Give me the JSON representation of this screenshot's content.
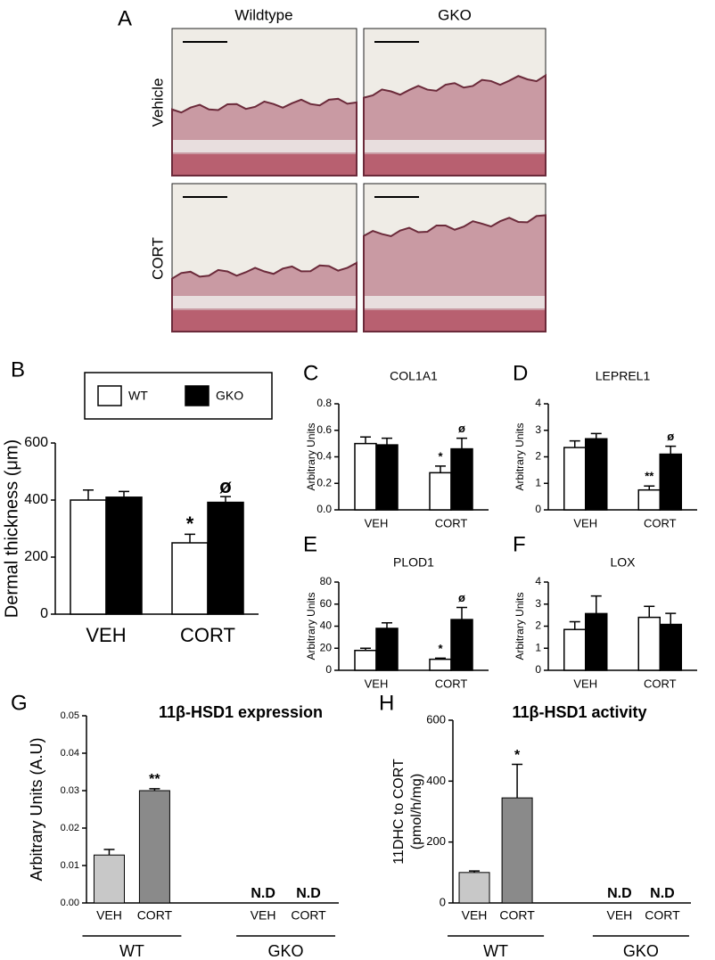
{
  "panel_a": {
    "label": "A",
    "columns": [
      "Wildtype",
      "GKO"
    ],
    "rows": [
      "Vehicle",
      "CORT"
    ]
  },
  "chart_data": [
    {
      "type": "bar",
      "label": "B",
      "ylabel": "Dermal thickness (μm)",
      "categories": [
        "VEH",
        "CORT"
      ],
      "series": [
        {
          "name": "WT",
          "color": "#ffffff",
          "values": [
            400,
            250
          ],
          "errors": [
            35,
            30
          ],
          "markers": [
            null,
            "*"
          ]
        },
        {
          "name": "GKO",
          "color": "#000000",
          "values": [
            410,
            392
          ],
          "errors": [
            20,
            20
          ],
          "markers": [
            null,
            "ø"
          ]
        }
      ],
      "ylim": [
        0,
        600
      ],
      "yticks": [
        0,
        200,
        400,
        600
      ],
      "legend": "top"
    },
    {
      "type": "bar",
      "label": "C",
      "title": "COL1A1",
      "ylabel": "Arbitrary Units",
      "categories": [
        "VEH",
        "CORT"
      ],
      "series": [
        {
          "name": "WT",
          "color": "#ffffff",
          "values": [
            0.5,
            0.28
          ],
          "errors": [
            0.05,
            0.05
          ],
          "markers": [
            null,
            "*"
          ]
        },
        {
          "name": "GKO",
          "color": "#000000",
          "values": [
            0.49,
            0.46
          ],
          "errors": [
            0.05,
            0.08
          ],
          "markers": [
            null,
            "ø"
          ]
        }
      ],
      "ylim": [
        0,
        0.8
      ],
      "yticks": [
        {
          "value": 0,
          "label": "0.0"
        },
        0.2,
        0.4,
        0.6,
        0.8
      ]
    },
    {
      "type": "bar",
      "label": "D",
      "title": "LEPREL1",
      "ylabel": "Arbitrary Units",
      "categories": [
        "VEH",
        "CORT"
      ],
      "series": [
        {
          "name": "WT",
          "color": "#ffffff",
          "values": [
            2.35,
            0.75
          ],
          "errors": [
            0.25,
            0.15
          ],
          "markers": [
            null,
            "**"
          ]
        },
        {
          "name": "GKO",
          "color": "#000000",
          "values": [
            2.68,
            2.1
          ],
          "errors": [
            0.2,
            0.3
          ],
          "markers": [
            null,
            "ø"
          ]
        }
      ],
      "ylim": [
        0,
        4
      ],
      "yticks": [
        0,
        1,
        2,
        3,
        4
      ]
    },
    {
      "type": "bar",
      "label": "E",
      "title": "PLOD1",
      "ylabel": "Arbitrary Units",
      "categories": [
        "VEH",
        "CORT"
      ],
      "series": [
        {
          "name": "WT",
          "color": "#ffffff",
          "values": [
            18,
            10
          ],
          "errors": [
            2,
            1
          ],
          "markers": [
            null,
            "*"
          ]
        },
        {
          "name": "GKO",
          "color": "#000000",
          "values": [
            38,
            46
          ],
          "errors": [
            5,
            11
          ],
          "markers": [
            null,
            "ø"
          ]
        }
      ],
      "ylim": [
        0,
        80
      ],
      "yticks": [
        0,
        20,
        40,
        60,
        80
      ]
    },
    {
      "type": "bar",
      "label": "F",
      "title": "LOX",
      "ylabel": "Arbitrary Units",
      "categories": [
        "VEH",
        "CORT"
      ],
      "series": [
        {
          "name": "WT",
          "color": "#ffffff",
          "values": [
            1.85,
            2.4
          ],
          "errors": [
            0.35,
            0.5
          ]
        },
        {
          "name": "GKO",
          "color": "#000000",
          "values": [
            2.57,
            2.08
          ],
          "errors": [
            0.8,
            0.5
          ]
        }
      ],
      "ylim": [
        0,
        4
      ],
      "yticks": [
        0,
        1,
        2,
        3,
        4
      ]
    },
    {
      "type": "bar",
      "label": "G",
      "title": "11β-HSD1 expression",
      "ylabel": "Arbitrary Units (A.U)",
      "categories": [
        "VEH",
        "CORT",
        "VEH",
        "CORT"
      ],
      "groups": [
        "WT",
        "GKO"
      ],
      "values": [
        0.0128,
        0.03,
        null,
        null
      ],
      "errors": [
        0.0015,
        0.0005,
        null,
        null
      ],
      "markers": [
        null,
        "**",
        "N.D",
        "N.D"
      ],
      "colors": [
        "#c8c8c8",
        "#8a8a8a",
        "#c8c8c8",
        "#8a8a8a"
      ],
      "ylim": [
        0,
        0.05
      ],
      "yticks": [
        {
          "value": 0,
          "label": "0.00"
        },
        0.01,
        0.02,
        0.03,
        0.04,
        0.05
      ]
    },
    {
      "type": "bar",
      "label": "H",
      "title": "11β-HSD1 activity",
      "ylabel": [
        "11DHC to CORT",
        "(pmol/h/mg)"
      ],
      "categories": [
        "VEH",
        "CORT",
        "VEH",
        "CORT"
      ],
      "groups": [
        "WT",
        "GKO"
      ],
      "values": [
        100,
        345,
        null,
        null
      ],
      "errors": [
        5,
        110,
        null,
        null
      ],
      "markers": [
        null,
        "*",
        "N.D",
        "N.D"
      ],
      "colors": [
        "#c8c8c8",
        "#8a8a8a",
        "#c8c8c8",
        "#8a8a8a"
      ],
      "ylim": [
        0,
        600
      ],
      "yticks": [
        0,
        200,
        400,
        600
      ]
    }
  ]
}
